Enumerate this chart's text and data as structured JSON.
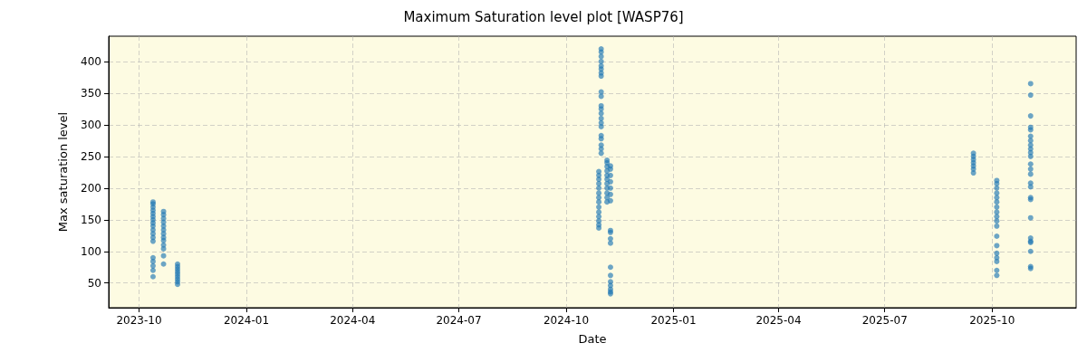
{
  "chart_data": {
    "type": "scatter",
    "title": "Maximum Saturation level plot [WASP76]",
    "xlabel": "Date",
    "ylabel": "Max saturation level",
    "x": [
      "2023-10-13",
      "2023-10-13",
      "2023-10-13",
      "2023-10-13",
      "2023-10-13",
      "2023-10-13",
      "2023-10-13",
      "2023-10-13",
      "2023-10-13",
      "2023-10-13",
      "2023-10-13",
      "2023-10-13",
      "2023-10-13",
      "2023-10-13",
      "2023-10-13",
      "2023-10-13",
      "2023-10-13",
      "2023-10-13",
      "2023-10-22",
      "2023-10-22",
      "2023-10-22",
      "2023-10-22",
      "2023-10-22",
      "2023-10-22",
      "2023-10-22",
      "2023-10-22",
      "2023-10-22",
      "2023-10-22",
      "2023-10-22",
      "2023-10-22",
      "2023-10-22",
      "2023-11-03",
      "2023-11-03",
      "2023-11-03",
      "2023-11-03",
      "2023-11-03",
      "2023-11-03",
      "2023-11-03",
      "2023-11-03",
      "2023-11-03",
      "2024-10-29",
      "2024-10-29",
      "2024-10-29",
      "2024-10-29",
      "2024-10-29",
      "2024-10-29",
      "2024-10-29",
      "2024-10-29",
      "2024-10-29",
      "2024-10-29",
      "2024-10-29",
      "2024-10-29",
      "2024-10-29",
      "2024-10-29",
      "2024-10-31",
      "2024-10-31",
      "2024-10-31",
      "2024-10-31",
      "2024-10-31",
      "2024-10-31",
      "2024-10-31",
      "2024-10-31",
      "2024-10-31",
      "2024-10-31",
      "2024-10-31",
      "2024-10-31",
      "2024-10-31",
      "2024-10-31",
      "2024-10-31",
      "2024-10-31",
      "2024-10-31",
      "2024-10-31",
      "2024-10-31",
      "2024-10-31",
      "2024-10-31",
      "2024-11-05",
      "2024-11-05",
      "2024-11-05",
      "2024-11-05",
      "2024-11-05",
      "2024-11-05",
      "2024-11-05",
      "2024-11-05",
      "2024-11-05",
      "2024-11-05",
      "2024-11-05",
      "2024-11-08",
      "2024-11-08",
      "2024-11-08",
      "2024-11-08",
      "2024-11-08",
      "2024-11-08",
      "2024-11-08",
      "2024-11-08",
      "2024-11-08",
      "2024-11-08",
      "2024-11-08",
      "2024-11-08",
      "2024-11-08",
      "2024-11-08",
      "2024-11-08",
      "2024-11-08",
      "2024-11-08",
      "2024-11-08",
      "2025-09-15",
      "2025-09-15",
      "2025-09-15",
      "2025-09-15",
      "2025-09-15",
      "2025-09-15",
      "2025-09-15",
      "2025-10-05",
      "2025-10-05",
      "2025-10-05",
      "2025-10-05",
      "2025-10-05",
      "2025-10-05",
      "2025-10-05",
      "2025-10-05",
      "2025-10-05",
      "2025-10-05",
      "2025-10-05",
      "2025-10-05",
      "2025-10-05",
      "2025-10-05",
      "2025-10-05",
      "2025-10-05",
      "2025-10-05",
      "2025-10-05",
      "2025-11-03",
      "2025-11-03",
      "2025-11-03",
      "2025-11-03",
      "2025-11-03",
      "2025-11-03",
      "2025-11-03",
      "2025-11-03",
      "2025-11-03",
      "2025-11-03",
      "2025-11-03",
      "2025-11-03",
      "2025-11-03",
      "2025-11-03",
      "2025-11-03",
      "2025-11-03",
      "2025-11-03",
      "2025-11-03",
      "2025-11-03",
      "2025-11-03",
      "2025-11-03",
      "2025-11-03",
      "2025-11-03",
      "2025-11-03",
      "2025-11-03"
    ],
    "values": [
      60,
      70,
      77,
      84,
      90,
      116,
      122,
      128,
      134,
      140,
      145,
      150,
      155,
      160,
      165,
      170,
      175,
      178,
      80,
      93,
      104,
      110,
      117,
      122,
      128,
      134,
      140,
      146,
      152,
      158,
      163,
      48,
      52,
      56,
      60,
      64,
      68,
      72,
      76,
      80,
      137,
      142,
      148,
      155,
      162,
      170,
      178,
      185,
      192,
      200,
      207,
      214,
      220,
      226,
      255,
      262,
      268,
      278,
      283,
      297,
      303,
      310,
      318,
      325,
      330,
      345,
      352,
      377,
      382,
      388,
      393,
      400,
      408,
      415,
      420,
      178,
      185,
      192,
      200,
      207,
      214,
      220,
      227,
      234,
      240,
      244,
      33,
      36,
      40,
      46,
      52,
      62,
      75,
      113,
      120,
      130,
      133,
      180,
      190,
      200,
      210,
      220,
      230,
      235,
      224,
      230,
      235,
      240,
      245,
      250,
      255,
      62,
      70,
      84,
      90,
      97,
      109,
      124,
      140,
      148,
      155,
      162,
      170,
      178,
      185,
      192,
      200,
      207,
      212,
      73,
      76,
      100,
      114,
      116,
      121,
      153,
      182,
      185,
      202,
      208,
      222,
      230,
      238,
      250,
      256,
      262,
      268,
      275,
      282,
      292,
      296,
      314,
      347,
      365
    ],
    "color": "#1f77b4",
    "marker": "circle",
    "grid": true,
    "xlim": [
      "2023-09-05",
      "2025-12-12"
    ],
    "xticks": [
      {
        "value": "2023-10-01",
        "label": "2023-10"
      },
      {
        "value": "2024-01-01",
        "label": "2024-01"
      },
      {
        "value": "2024-04-01",
        "label": "2024-04"
      },
      {
        "value": "2024-07-01",
        "label": "2024-07"
      },
      {
        "value": "2024-10-01",
        "label": "2024-10"
      },
      {
        "value": "2025-01-01",
        "label": "2025-01"
      },
      {
        "value": "2025-04-01",
        "label": "2025-04"
      },
      {
        "value": "2025-07-01",
        "label": "2025-07"
      },
      {
        "value": "2025-10-01",
        "label": "2025-10"
      }
    ],
    "ylim": [
      11,
      440
    ],
    "yticks": [
      50,
      100,
      150,
      200,
      250,
      300,
      350,
      400
    ]
  }
}
